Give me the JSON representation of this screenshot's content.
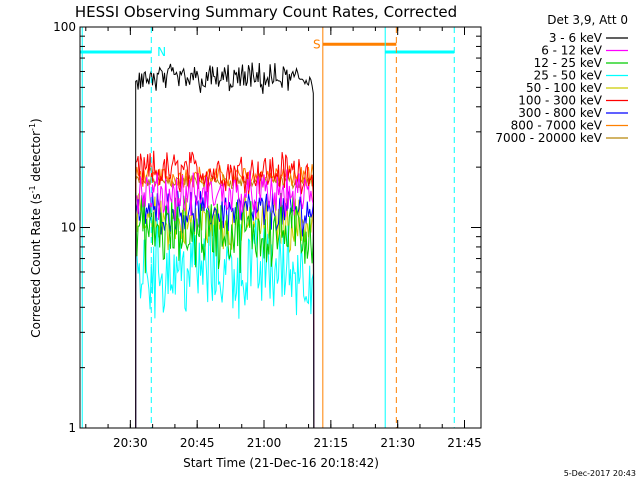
{
  "chart_data": {
    "type": "line",
    "title": "HESSI Observing Summary Count Rates, Corrected",
    "xlabel": "Start Time (21-Dec-16 20:18:42)",
    "ylabel_main": "Corrected Count Rate (s",
    "ylabel_sup1": "-1",
    "ylabel_mid": " detector",
    "ylabel_sup2": "-1",
    "ylabel_end": ")",
    "y_scale": "log",
    "ylim": [
      1,
      100
    ],
    "xlim_minutes": [
      0,
      90
    ],
    "x_ticks": [
      {
        "label": "20:30",
        "minute": 11.3
      },
      {
        "label": "20:45",
        "minute": 26.3
      },
      {
        "label": "21:00",
        "minute": 41.3
      },
      {
        "label": "21:15",
        "minute": 56.3
      },
      {
        "label": "21:30",
        "minute": 71.3
      },
      {
        "label": "21:45",
        "minute": 86.3
      }
    ],
    "y_ticks": [
      {
        "label": "1",
        "value": 1
      },
      {
        "label": "10",
        "value": 10
      },
      {
        "label": "100",
        "value": 100
      }
    ],
    "legend_header": "Det 3,9, Att 0",
    "legend_placement": "top-right outside",
    "series": [
      {
        "name": "3 - 6 keV",
        "color": "#000000",
        "level": 55,
        "noise": 0.1
      },
      {
        "name": "6 - 12 keV",
        "color": "#ff00ff",
        "level": 14.5,
        "noise": 0.15
      },
      {
        "name": "12 - 25 keV",
        "color": "#00cc00",
        "level": 9.5,
        "noise": 0.25
      },
      {
        "name": "25 - 50 keV",
        "color": "#00ffff",
        "level": 6.2,
        "noise": 0.32
      },
      {
        "name": "50 - 100 keV",
        "color": "#cccc00",
        "level": 10.5,
        "noise": 0.18
      },
      {
        "name": "100 - 300 keV",
        "color": "#ff0000",
        "level": 19,
        "noise": 0.14
      },
      {
        "name": "300 - 800 keV",
        "color": "#0000ff",
        "level": 12,
        "noise": 0.14
      },
      {
        "name": "800 - 7000 keV",
        "color": "#ff8000",
        "level": 18,
        "noise": 0.07
      },
      {
        "name": "7000 - 20000 keV",
        "color": "#b8860b",
        "level": 17,
        "noise": 0.05
      }
    ],
    "data_window_minutes": [
      12.5,
      52.5
    ],
    "annotations": [
      {
        "text": "N",
        "color": "#00ffff"
      },
      {
        "text": "S",
        "color": "#ff8000"
      }
    ],
    "night_bars": [
      {
        "color": "#00ffff",
        "value": 75,
        "x_range_minutes": [
          0,
          16
        ]
      },
      {
        "color": "#ff8000",
        "value": 82,
        "x_range_minutes": [
          54.5,
          71
        ]
      },
      {
        "color": "#00ffff",
        "value": 75,
        "x_range_minutes": [
          68.5,
          84
        ]
      }
    ],
    "vertical_lines": [
      {
        "color": "#00ffff",
        "minute": 0.5,
        "style": "solid"
      },
      {
        "color": "#00ffff",
        "minute": 16,
        "style": "dashed"
      },
      {
        "color": "#ff8000",
        "minute": 54.5,
        "style": "solid"
      },
      {
        "color": "#00ffff",
        "minute": 68.5,
        "style": "solid"
      },
      {
        "color": "#ff8000",
        "minute": 71,
        "style": "dashed"
      },
      {
        "color": "#00ffff",
        "minute": 84,
        "style": "dashed"
      }
    ]
  },
  "footer": {
    "timestamp": "5-Dec-2017 20:43"
  }
}
